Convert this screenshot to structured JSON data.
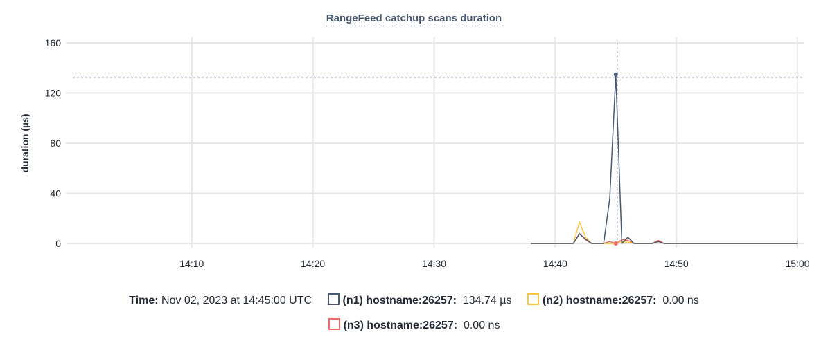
{
  "chart_data": {
    "type": "line",
    "title": "RangeFeed catchup scans duration",
    "ylabel": "duration (µs)",
    "xlabel": "",
    "ylim": [
      0,
      160
    ],
    "yticks": [
      "0",
      "40",
      "80",
      "120",
      "160"
    ],
    "xlim": [
      "13:59:36",
      "15:00:00"
    ],
    "xticks": [
      "14:10",
      "14:20",
      "14:30",
      "14:40",
      "14:50",
      "15:00"
    ],
    "grid": true,
    "x": [
      "14:38:00",
      "14:38:30",
      "14:39:00",
      "14:39:30",
      "14:40:00",
      "14:40:30",
      "14:41:00",
      "14:41:30",
      "14:42:00",
      "14:42:30",
      "14:43:00",
      "14:43:30",
      "14:44:00",
      "14:44:30",
      "14:45:00",
      "14:45:30",
      "14:46:00",
      "14:46:30",
      "14:47:00",
      "14:47:30",
      "14:48:00",
      "14:48:30",
      "14:49:00",
      "14:49:30",
      "14:50:00",
      "14:50:30",
      "14:51:00",
      "14:51:30",
      "14:52:00",
      "14:52:30",
      "14:53:00",
      "14:53:30",
      "14:54:00",
      "14:54:30",
      "14:55:00",
      "14:55:30",
      "14:56:00",
      "14:56:30",
      "14:57:00",
      "14:57:30",
      "14:58:00",
      "14:58:30",
      "14:59:00",
      "14:59:30",
      "15:00:00"
    ],
    "series": [
      {
        "name": "(n1) hostname:26257",
        "color": "#475872",
        "values": [
          0,
          0,
          0,
          0,
          0,
          0,
          0,
          0,
          7.7,
          3.5,
          0,
          0,
          0,
          36,
          134.74,
          0,
          5,
          0,
          0,
          0,
          0,
          1.5,
          0,
          0,
          0,
          0,
          0,
          0,
          0,
          0,
          0,
          0,
          0,
          0,
          0,
          0,
          0,
          0,
          0,
          0,
          0,
          0,
          0,
          0,
          0
        ]
      },
      {
        "name": "(n2) hostname:26257",
        "color": "#ffc43d",
        "values": [
          0,
          0,
          0,
          0,
          0,
          0,
          0,
          0,
          17,
          5,
          0,
          0,
          0,
          0,
          0,
          1.5,
          1,
          0,
          0,
          0,
          0,
          1.5,
          0,
          0,
          0,
          0,
          0,
          0,
          0,
          0,
          0,
          0,
          0,
          0,
          0,
          0,
          0,
          0,
          0,
          0,
          0,
          0,
          0,
          0,
          0
        ]
      },
      {
        "name": "(n3) hostname:26257",
        "color": "#f16969",
        "values": [
          0,
          0,
          0,
          0,
          0,
          0,
          0,
          0,
          8,
          3,
          0,
          0,
          0,
          1.5,
          0,
          3,
          2.5,
          0,
          0,
          0,
          0,
          2.5,
          0,
          0,
          0,
          0,
          0,
          0,
          0,
          0,
          0,
          0,
          0,
          0,
          0,
          0,
          0,
          0,
          0,
          0,
          0,
          0,
          0,
          0,
          0
        ]
      }
    ],
    "hover": {
      "time": "14:45:00",
      "value": 134.74
    }
  },
  "legend": {
    "time_label": "Time:",
    "time_value": "Nov 02, 2023 at 14:45:00 UTC",
    "items": [
      {
        "label": "(n1) hostname:26257:",
        "value": "134.74 µs",
        "color": "#475872"
      },
      {
        "label": "(n2) hostname:26257:",
        "value": "0.00 ns",
        "color": "#ffc43d"
      },
      {
        "label": "(n3) hostname:26257:",
        "value": "0.00 ns",
        "color": "#f16969"
      }
    ]
  }
}
